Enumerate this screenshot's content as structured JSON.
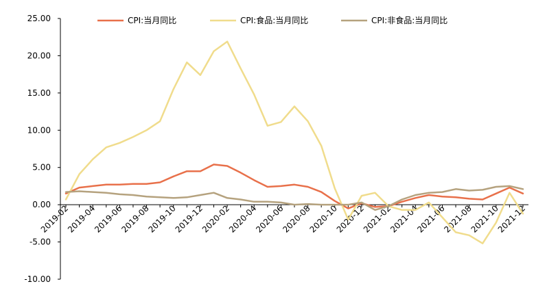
{
  "chart_data": {
    "type": "line",
    "title": "",
    "xlabel": "",
    "ylabel": "",
    "ylim": [
      -10,
      25
    ],
    "yticks": [
      "25.00",
      "20.00",
      "15.00",
      "10.00",
      "5.00",
      "0.00",
      "-5.00",
      "-10.00"
    ],
    "ytick_values": [
      25,
      20,
      15,
      10,
      5,
      0,
      -5,
      -10
    ],
    "grid": false,
    "legend_position": "top",
    "x": [
      "2019-02",
      "2019-03",
      "2019-04",
      "2019-05",
      "2019-06",
      "2019-07",
      "2019-08",
      "2019-09",
      "2019-10",
      "2019-11",
      "2019-12",
      "2020-01",
      "2020-02",
      "2020-03",
      "2020-04",
      "2020-05",
      "2020-06",
      "2020-07",
      "2020-08",
      "2020-09",
      "2020-10",
      "2020-11",
      "2020-12",
      "2021-01",
      "2021-02",
      "2021-03",
      "2021-04",
      "2021-05",
      "2021-06",
      "2021-07",
      "2021-08",
      "2021-09",
      "2021-10",
      "2021-11",
      "2021-12"
    ],
    "xtick_labels": [
      "2019-02",
      "2019-04",
      "2019-06",
      "2019-08",
      "2019-10",
      "2019-12",
      "2020-02",
      "2020-04",
      "2020-06",
      "2020-08",
      "2020-10",
      "2020-12",
      "2021-02",
      "2021-04",
      "2021-06",
      "2021-08",
      "2021-10",
      "2021-12"
    ],
    "series": [
      {
        "name": "CPI:当月同比",
        "color": "#E8704A",
        "values": [
          1.5,
          2.3,
          2.5,
          2.7,
          2.7,
          2.8,
          2.8,
          3.0,
          3.8,
          4.5,
          4.5,
          5.4,
          5.2,
          4.3,
          3.3,
          2.4,
          2.5,
          2.7,
          2.4,
          1.7,
          0.5,
          -0.5,
          0.2,
          -0.3,
          -0.2,
          0.4,
          0.9,
          1.3,
          1.1,
          1.0,
          0.8,
          0.7,
          1.5,
          2.3,
          1.5
        ]
      },
      {
        "name": "CPI:食品:当月同比",
        "color": "#F0DC8C",
        "values": [
          0.7,
          4.1,
          6.1,
          7.7,
          8.3,
          9.1,
          10.0,
          11.2,
          15.5,
          19.1,
          17.4,
          20.6,
          21.9,
          18.3,
          14.8,
          10.6,
          11.1,
          13.2,
          11.2,
          7.9,
          2.2,
          -2.0,
          1.2,
          1.6,
          -0.2,
          -0.7,
          -0.7,
          0.3,
          -1.7,
          -3.7,
          -4.1,
          -5.2,
          -2.4,
          1.6,
          -1.2
        ]
      },
      {
        "name": "CPI:非食品:当月同比",
        "color": "#B5A27E",
        "values": [
          1.7,
          1.8,
          1.7,
          1.6,
          1.4,
          1.3,
          1.1,
          1.0,
          0.9,
          1.0,
          1.3,
          1.6,
          0.9,
          0.7,
          0.4,
          0.4,
          0.3,
          0.0,
          0.1,
          0.0,
          0.0,
          0.0,
          0.3,
          -0.7,
          -0.2,
          0.7,
          1.3,
          1.6,
          1.7,
          2.1,
          1.9,
          2.0,
          2.4,
          2.5,
          2.1
        ]
      }
    ]
  }
}
